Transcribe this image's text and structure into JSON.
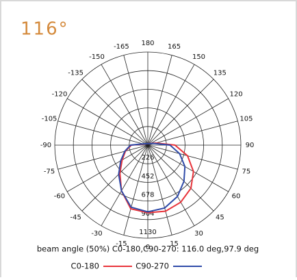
{
  "chart_data": {
    "type": "polar",
    "title": "116°",
    "rlim": [
      0,
      1130
    ],
    "rticks": [
      226,
      452,
      678,
      904,
      1130
    ],
    "angle_ticks": [
      180,
      165,
      150,
      135,
      120,
      105,
      90,
      75,
      60,
      45,
      30,
      15,
      0,
      -15,
      -30,
      -45,
      -60,
      -75,
      -90,
      -105,
      -120,
      -135,
      -150,
      -165
    ],
    "theta": [
      -105,
      -90,
      -75,
      -60,
      -45,
      -30,
      -15,
      0,
      15,
      30,
      45,
      60,
      75,
      90,
      105
    ],
    "series": [
      {
        "name": "C0-180",
        "color": "#e8333a",
        "values": [
          50,
          200,
          280,
          360,
          480,
          640,
          800,
          820,
          830,
          800,
          740,
          640,
          500,
          330,
          100
        ]
      },
      {
        "name": "C90-270",
        "color": "#2e4aa8",
        "values": [
          60,
          210,
          290,
          380,
          500,
          640,
          780,
          810,
          790,
          720,
          620,
          520,
          400,
          270,
          80
        ]
      }
    ],
    "annotation": "beam angle (50%) C0-180,C90-270: 116.0 deg,97.9 deg"
  }
}
